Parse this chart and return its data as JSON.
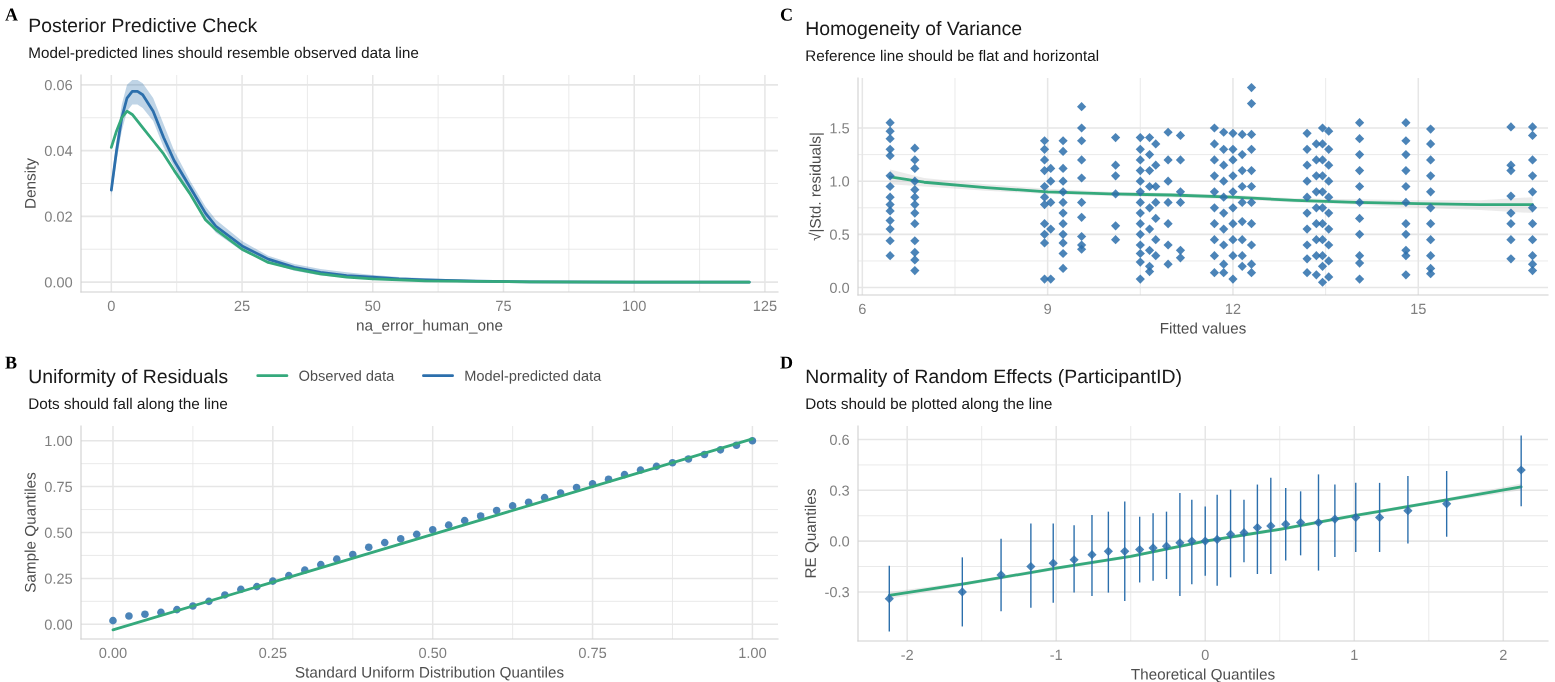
{
  "chart_data": [
    {
      "type": "line",
      "title": "Posterior Predictive Check",
      "subtitle": "Model-predicted lines should resemble observed data line",
      "xlabel": "na_error_human_one",
      "ylabel": "Density",
      "annotations": [
        "A"
      ],
      "xlim": [
        -5.8,
        127.5
      ],
      "ylim": [
        -0.003,
        0.063
      ],
      "xticks": [
        0,
        25,
        50,
        75,
        100,
        125
      ],
      "yticks": [
        {
          "value": 0,
          "label": "0.00"
        },
        {
          "value": 0.02,
          "label": "0.02"
        },
        {
          "value": 0.04,
          "label": "0.04"
        },
        {
          "value": 0.06,
          "label": "0.06"
        }
      ],
      "grid": true,
      "legend": "bottom",
      "series": [
        {
          "name": "Observed data",
          "color": "#35a97c",
          "x": [
            0,
            1,
            2,
            3,
            4,
            6,
            8,
            10,
            12,
            15,
            18,
            20,
            25,
            30,
            35,
            40,
            45,
            50,
            55,
            60,
            70,
            80,
            100,
            122
          ],
          "values": [
            0.041,
            0.046,
            0.05,
            0.052,
            0.051,
            0.047,
            0.043,
            0.039,
            0.034,
            0.027,
            0.019,
            0.016,
            0.01,
            0.006,
            0.004,
            0.0025,
            0.0015,
            0.001,
            0.0007,
            0.0004,
            0.0002,
            0.0001,
            0,
            0
          ]
        },
        {
          "name": "Model-predicted data",
          "color": "#2c6fac",
          "x": [
            0,
            1,
            2,
            3,
            4,
            5,
            6,
            8,
            10,
            12,
            15,
            18,
            20,
            25,
            30,
            35,
            40,
            45,
            50,
            55,
            60,
            70,
            80,
            100,
            122
          ],
          "values": [
            0.028,
            0.04,
            0.05,
            0.056,
            0.058,
            0.058,
            0.057,
            0.052,
            0.044,
            0.037,
            0.029,
            0.021,
            0.017,
            0.011,
            0.007,
            0.0045,
            0.003,
            0.002,
            0.0015,
            0.001,
            0.0007,
            0.0003,
            0.0001,
            0,
            0
          ],
          "lower": [
            0.026,
            0.037,
            0.046,
            0.052,
            0.054,
            0.054,
            0.053,
            0.049,
            0.041,
            0.035,
            0.027,
            0.019,
            0.015,
            0.0095,
            0.006,
            0.0035,
            0.002,
            0.0013,
            0.001,
            0.0006,
            0.0004,
            0.0001,
            0,
            0,
            0
          ],
          "upper": [
            0.031,
            0.043,
            0.054,
            0.06,
            0.0615,
            0.0615,
            0.0605,
            0.056,
            0.048,
            0.04,
            0.031,
            0.023,
            0.019,
            0.0125,
            0.008,
            0.0055,
            0.004,
            0.003,
            0.0022,
            0.0016,
            0.0012,
            0.0006,
            0.0003,
            0.0001,
            0.0001
          ]
        }
      ]
    },
    {
      "type": "scatter",
      "title": "Uniformity of Residuals",
      "subtitle": "Dots should fall along the line",
      "xlabel": "Standard Uniform Distribution Quantiles",
      "ylabel": "Sample Quantiles",
      "annotations": [
        "B"
      ],
      "xlim": [
        -0.05,
        1.04
      ],
      "ylim": [
        -0.08,
        1.08
      ],
      "xticks": [
        {
          "value": 0,
          "label": "0.00"
        },
        {
          "value": 0.25,
          "label": "0.25"
        },
        {
          "value": 0.5,
          "label": "0.50"
        },
        {
          "value": 0.75,
          "label": "0.75"
        },
        {
          "value": 1,
          "label": "1.00"
        }
      ],
      "yticks": [
        {
          "value": 0,
          "label": "0.00"
        },
        {
          "value": 0.25,
          "label": "0.25"
        },
        {
          "value": 0.5,
          "label": "0.50"
        },
        {
          "value": 0.75,
          "label": "0.75"
        },
        {
          "value": 1,
          "label": "1.00"
        }
      ],
      "grid": true,
      "series": [
        {
          "type": "line",
          "color": "#35a97c",
          "x": [
            0,
            1
          ],
          "values": [
            -0.03,
            1.01
          ]
        },
        {
          "color": "#2c6fac",
          "marker": "circle",
          "x": [
            0,
            0.025,
            0.05,
            0.075,
            0.1,
            0.125,
            0.15,
            0.175,
            0.2,
            0.225,
            0.25,
            0.275,
            0.3,
            0.325,
            0.35,
            0.375,
            0.4,
            0.425,
            0.45,
            0.475,
            0.5,
            0.525,
            0.55,
            0.575,
            0.6,
            0.625,
            0.65,
            0.675,
            0.7,
            0.725,
            0.75,
            0.775,
            0.8,
            0.825,
            0.85,
            0.875,
            0.9,
            0.925,
            0.95,
            0.975,
            1
          ],
          "values": [
            0.02,
            0.045,
            0.055,
            0.065,
            0.08,
            0.1,
            0.125,
            0.16,
            0.19,
            0.205,
            0.235,
            0.265,
            0.295,
            0.325,
            0.355,
            0.38,
            0.42,
            0.445,
            0.465,
            0.49,
            0.515,
            0.54,
            0.565,
            0.59,
            0.62,
            0.645,
            0.665,
            0.69,
            0.715,
            0.745,
            0.765,
            0.79,
            0.815,
            0.84,
            0.86,
            0.88,
            0.9,
            0.925,
            0.95,
            0.975,
            1.0
          ]
        }
      ]
    },
    {
      "type": "scatter",
      "title": "Homogeneity of Variance",
      "subtitle": "Reference line should be flat and horizontal",
      "xlabel": "Fitted values",
      "ylabel": "√|Std. residuals|",
      "annotations": [
        "C"
      ],
      "xlim": [
        5.93,
        17.1
      ],
      "ylim": [
        -0.07,
        1.97
      ],
      "xticks": [
        6,
        9,
        12,
        15
      ],
      "yticks": [
        {
          "value": 0,
          "label": "0.0"
        },
        {
          "value": 0.5,
          "label": "0.5"
        },
        {
          "value": 1,
          "label": "1.0"
        },
        {
          "value": 1.5,
          "label": "1.5"
        }
      ],
      "grid": true,
      "series": [
        {
          "color": "#2c6fac",
          "marker": "diamond",
          "x": [
            6.45,
            6.45,
            6.45,
            6.45,
            6.45,
            6.45,
            6.45,
            6.45,
            6.45,
            6.45,
            6.45,
            6.45,
            6.45,
            6.45,
            6.85,
            6.85,
            6.85,
            6.85,
            6.85,
            6.85,
            6.85,
            6.85,
            6.85,
            6.85,
            6.85,
            6.85,
            6.85,
            8.95,
            8.95,
            8.95,
            8.95,
            8.95,
            8.95,
            8.95,
            8.95,
            8.95,
            8.95,
            8.95,
            9.05,
            9.05,
            9.05,
            9.05,
            9.05,
            9.25,
            9.25,
            9.25,
            9.25,
            9.25,
            9.25,
            9.25,
            9.25,
            9.25,
            9.25,
            9.25,
            9.25,
            9.55,
            9.55,
            9.55,
            9.55,
            9.55,
            9.55,
            9.55,
            9.55,
            9.55,
            9.55,
            10.1,
            10.1,
            10.1,
            10.1,
            10.1,
            10.1,
            10.5,
            10.5,
            10.5,
            10.5,
            10.5,
            10.5,
            10.5,
            10.5,
            10.5,
            10.5,
            10.5,
            10.5,
            10.5,
            10.5,
            10.65,
            10.65,
            10.65,
            10.65,
            10.65,
            10.65,
            10.65,
            10.65,
            10.65,
            10.75,
            10.75,
            10.75,
            10.75,
            10.75,
            10.75,
            10.75,
            10.95,
            10.95,
            10.95,
            10.95,
            10.95,
            10.95,
            10.95,
            11.15,
            11.15,
            11.15,
            11.15,
            11.15,
            11.15,
            11.7,
            11.7,
            11.7,
            11.7,
            11.7,
            11.7,
            11.7,
            11.7,
            11.7,
            11.7,
            11.85,
            11.85,
            11.85,
            11.85,
            11.85,
            11.85,
            11.85,
            11.85,
            11.85,
            11.85,
            12.0,
            12.0,
            12.0,
            12.0,
            12.0,
            12.0,
            12.0,
            12.0,
            12.0,
            12.0,
            12.15,
            12.15,
            12.15,
            12.15,
            12.15,
            12.15,
            12.15,
            12.15,
            12.15,
            12.3,
            12.3,
            12.3,
            12.3,
            12.3,
            12.3,
            12.3,
            12.3,
            12.3,
            12.3,
            12.3,
            13.2,
            13.2,
            13.2,
            13.2,
            13.2,
            13.2,
            13.2,
            13.2,
            13.2,
            13.2,
            13.35,
            13.35,
            13.35,
            13.35,
            13.35,
            13.35,
            13.35,
            13.35,
            13.35,
            13.45,
            13.45,
            13.45,
            13.45,
            13.45,
            13.45,
            13.45,
            13.45,
            13.45,
            13.45,
            13.45,
            13.55,
            13.55,
            13.55,
            13.55,
            13.55,
            13.55,
            13.55,
            13.55,
            13.55,
            13.55,
            14.05,
            14.05,
            14.05,
            14.05,
            14.05,
            14.05,
            14.05,
            14.05,
            14.05,
            14.05,
            14.05,
            14.8,
            14.8,
            14.8,
            14.8,
            14.8,
            14.8,
            14.8,
            14.8,
            14.8,
            14.8,
            14.8,
            15.2,
            15.2,
            15.2,
            15.2,
            15.2,
            15.2,
            15.2,
            15.2,
            15.2,
            15.2,
            15.2,
            16.5,
            16.5,
            16.5,
            16.5,
            16.5,
            16.5,
            16.5,
            16.5,
            16.85,
            16.85,
            16.85,
            16.85,
            16.85,
            16.85,
            16.85,
            16.85,
            16.85,
            16.85,
            16.85
          ],
          "values": [
            1.55,
            1.47,
            1.4,
            1.3,
            1.24,
            1.05,
            0.95,
            0.85,
            0.78,
            0.72,
            0.63,
            0.55,
            0.44,
            0.3,
            1.31,
            1.2,
            1.12,
            1.0,
            0.92,
            0.85,
            0.78,
            0.7,
            0.6,
            0.44,
            0.33,
            0.26,
            0.16,
            1.38,
            1.3,
            1.2,
            1.1,
            0.95,
            0.85,
            0.78,
            0.6,
            0.5,
            0.42,
            0.08,
            1.12,
            1.0,
            0.8,
            0.55,
            0.08,
            1.38,
            1.28,
            1.12,
            1.0,
            0.9,
            0.8,
            0.7,
            0.6,
            0.5,
            0.42,
            0.32,
            0.18,
            1.7,
            1.5,
            1.38,
            1.2,
            1.03,
            0.8,
            0.66,
            0.48,
            0.4,
            0.36,
            1.41,
            1.15,
            1.05,
            0.88,
            0.58,
            0.45,
            1.41,
            1.3,
            1.2,
            1.1,
            1.0,
            0.9,
            0.8,
            0.7,
            0.6,
            0.5,
            0.4,
            0.32,
            0.24,
            0.08,
            1.41,
            1.25,
            1.1,
            0.95,
            0.75,
            0.55,
            0.35,
            0.2,
            0.15,
            1.35,
            1.15,
            0.95,
            0.8,
            0.65,
            0.45,
            0.3,
            1.46,
            1.2,
            1.0,
            0.8,
            0.6,
            0.4,
            0.22,
            1.43,
            1.2,
            0.9,
            0.8,
            0.35,
            0.28,
            1.5,
            1.35,
            1.2,
            1.05,
            0.9,
            0.75,
            0.6,
            0.45,
            0.3,
            0.14,
            1.46,
            1.3,
            1.15,
            1.0,
            0.85,
            0.7,
            0.55,
            0.4,
            0.22,
            0.14,
            1.45,
            1.3,
            1.2,
            1.05,
            0.9,
            0.75,
            0.6,
            0.45,
            0.3,
            0.08,
            1.44,
            1.25,
            1.1,
            0.95,
            0.8,
            0.62,
            0.45,
            0.3,
            0.2,
            1.88,
            1.73,
            1.44,
            1.3,
            1.1,
            0.95,
            0.8,
            0.6,
            0.4,
            0.22,
            0.14,
            1.45,
            1.3,
            1.15,
            1.0,
            0.85,
            0.7,
            0.55,
            0.4,
            0.27,
            0.14,
            1.35,
            1.2,
            1.05,
            0.9,
            0.75,
            0.6,
            0.45,
            0.3,
            0.12,
            1.5,
            1.35,
            1.2,
            1.05,
            0.9,
            0.75,
            0.6,
            0.45,
            0.3,
            0.2,
            0.05,
            1.47,
            1.3,
            1.15,
            1.0,
            0.85,
            0.7,
            0.55,
            0.4,
            0.25,
            0.1,
            1.55,
            1.4,
            1.25,
            1.1,
            0.95,
            0.8,
            0.65,
            0.5,
            0.3,
            0.23,
            0.08,
            1.55,
            1.38,
            1.25,
            1.1,
            0.95,
            0.8,
            0.6,
            0.5,
            0.35,
            0.3,
            0.12,
            1.49,
            1.35,
            1.2,
            1.05,
            0.9,
            0.75,
            0.6,
            0.45,
            0.3,
            0.18,
            0.13,
            1.51,
            1.15,
            1.1,
            0.86,
            0.7,
            0.6,
            0.45,
            0.27,
            1.51,
            1.43,
            1.2,
            1.05,
            0.9,
            0.75,
            0.6,
            0.45,
            0.3,
            0.22,
            0.16
          ]
        },
        {
          "type": "line",
          "color": "#35a97c",
          "x": [
            6.45,
            7,
            8,
            9,
            10,
            11,
            12,
            13,
            14,
            15,
            16,
            16.85
          ],
          "values": [
            1.04,
            0.99,
            0.94,
            0.9,
            0.88,
            0.87,
            0.85,
            0.82,
            0.8,
            0.79,
            0.78,
            0.78
          ],
          "lower": [
            0.97,
            0.95,
            0.91,
            0.88,
            0.86,
            0.85,
            0.83,
            0.8,
            0.78,
            0.75,
            0.73,
            0.7
          ],
          "upper": [
            1.11,
            1.03,
            0.97,
            0.93,
            0.9,
            0.89,
            0.87,
            0.84,
            0.83,
            0.82,
            0.82,
            0.85
          ]
        }
      ]
    },
    {
      "type": "scatter",
      "title": "Normality of Random Effects (ParticipantID)",
      "subtitle": "Dots should be plotted along the line",
      "xlabel": "Theoretical Quantiles",
      "ylabel": "RE Quantiles",
      "annotations": [
        "D"
      ],
      "xlim": [
        -2.33,
        2.3
      ],
      "ylim": [
        -0.59,
        0.68
      ],
      "xticks": [
        -2,
        -1,
        0,
        1,
        2
      ],
      "yticks": [
        {
          "value": -0.3,
          "label": "-0.3"
        },
        {
          "value": 0,
          "label": "0.0"
        },
        {
          "value": 0.3,
          "label": "0.3"
        },
        {
          "value": 0.6,
          "label": "0.6"
        }
      ],
      "grid": true,
      "series": [
        {
          "color": "#2c6fac",
          "marker": "diamond",
          "x": [
            -2.12,
            -1.63,
            -1.37,
            -1.17,
            -1.02,
            -0.88,
            -0.76,
            -0.65,
            -0.54,
            -0.44,
            -0.35,
            -0.26,
            -0.17,
            -0.09,
            0.0,
            0.08,
            0.17,
            0.26,
            0.35,
            0.44,
            0.54,
            0.64,
            0.76,
            0.87,
            1.01,
            1.17,
            1.36,
            1.62,
            2.12
          ],
          "values": [
            -0.34,
            -0.3,
            -0.2,
            -0.15,
            -0.13,
            -0.11,
            -0.08,
            -0.06,
            -0.06,
            -0.05,
            -0.04,
            -0.03,
            -0.01,
            0.0,
            0.0,
            0.01,
            0.04,
            0.05,
            0.08,
            0.09,
            0.1,
            0.11,
            0.11,
            0.13,
            0.14,
            0.14,
            0.18,
            0.22,
            0.42
          ],
          "errors": [
            [
              -0.53,
              -0.15
            ],
            [
              -0.5,
              -0.1
            ],
            [
              -0.41,
              0.01
            ],
            [
              -0.39,
              0.1
            ],
            [
              -0.36,
              0.1
            ],
            [
              -0.3,
              0.09
            ],
            [
              -0.32,
              0.15
            ],
            [
              -0.3,
              0.17
            ],
            [
              -0.35,
              0.23
            ],
            [
              -0.24,
              0.14
            ],
            [
              -0.23,
              0.16
            ],
            [
              -0.22,
              0.17
            ],
            [
              -0.32,
              0.28
            ],
            [
              -0.25,
              0.24
            ],
            [
              -0.2,
              0.2
            ],
            [
              -0.26,
              0.27
            ],
            [
              -0.21,
              0.3
            ],
            [
              -0.12,
              0.24
            ],
            [
              -0.19,
              0.33
            ],
            [
              -0.19,
              0.37
            ],
            [
              -0.11,
              0.31
            ],
            [
              -0.08,
              0.29
            ],
            [
              -0.17,
              0.39
            ],
            [
              -0.09,
              0.33
            ],
            [
              -0.06,
              0.34
            ],
            [
              -0.06,
              0.34
            ],
            [
              -0.01,
              0.38
            ],
            [
              0.03,
              0.41
            ],
            [
              0.21,
              0.62
            ]
          ]
        },
        {
          "type": "line",
          "color": "#35a97c",
          "x": [
            -2.12,
            -1.6,
            -1.0,
            -0.5,
            0,
            0.5,
            1.0,
            1.6,
            2.12
          ],
          "values": [
            -0.32,
            -0.25,
            -0.16,
            -0.09,
            0.0,
            0.07,
            0.15,
            0.24,
            0.32
          ],
          "lower": [
            -0.34,
            -0.26,
            -0.17,
            -0.1,
            -0.01,
            0.06,
            0.14,
            0.23,
            0.3
          ],
          "upper": [
            -0.3,
            -0.24,
            -0.15,
            -0.08,
            0.01,
            0.08,
            0.16,
            0.25,
            0.34
          ]
        }
      ]
    }
  ]
}
